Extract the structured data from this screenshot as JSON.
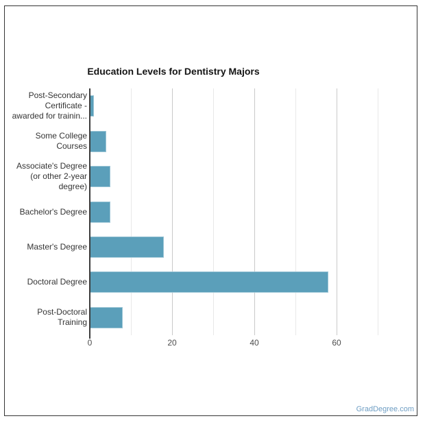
{
  "page": {
    "credits": "GradDegree.com"
  },
  "chart_data": {
    "type": "bar",
    "orientation": "horizontal",
    "title": "Education Levels for Dentistry Majors",
    "categories": [
      "Post-Secondary Certificate - awarded for trainin...",
      "Some College Courses",
      "Associate's Degree (or other 2-year degree)",
      "Bachelor's Degree",
      "Master's Degree",
      "Doctoral Degree",
      "Post-Doctoral Training"
    ],
    "category_display_lines": [
      [
        "Post-Secondary",
        "Certificate -",
        "awarded for trainin..."
      ],
      [
        "Some College",
        "Courses"
      ],
      [
        "Associate's Degree",
        "(or other 2-year",
        "degree)"
      ],
      [
        "Bachelor's Degree"
      ],
      [
        "Master's Degree"
      ],
      [
        "Doctoral Degree"
      ],
      [
        "Post-Doctoral",
        "Training"
      ]
    ],
    "values": [
      1,
      4,
      5,
      5,
      18,
      58,
      8
    ],
    "xlabel": "",
    "ylabel": "",
    "xlim": [
      0,
      75
    ],
    "x_tick_values": [
      0,
      20,
      40,
      60
    ],
    "x_tick_labels": [
      "0",
      "20",
      "40",
      "60"
    ],
    "minor_grid_step": 10,
    "grid": "vertical-only",
    "legend": "none",
    "colors": {
      "bar": "#5b9fba",
      "bar_border": "#9dc6d6",
      "grid_major": "#c9c9c9",
      "grid_minor": "#e8e8e8",
      "axis_line": "#3c3c3c",
      "tick_label": "#4d4d4d",
      "category_label": "#333333",
      "title": "#141414",
      "credits_link": "#6d9dc3",
      "card_border": "#333333"
    }
  }
}
